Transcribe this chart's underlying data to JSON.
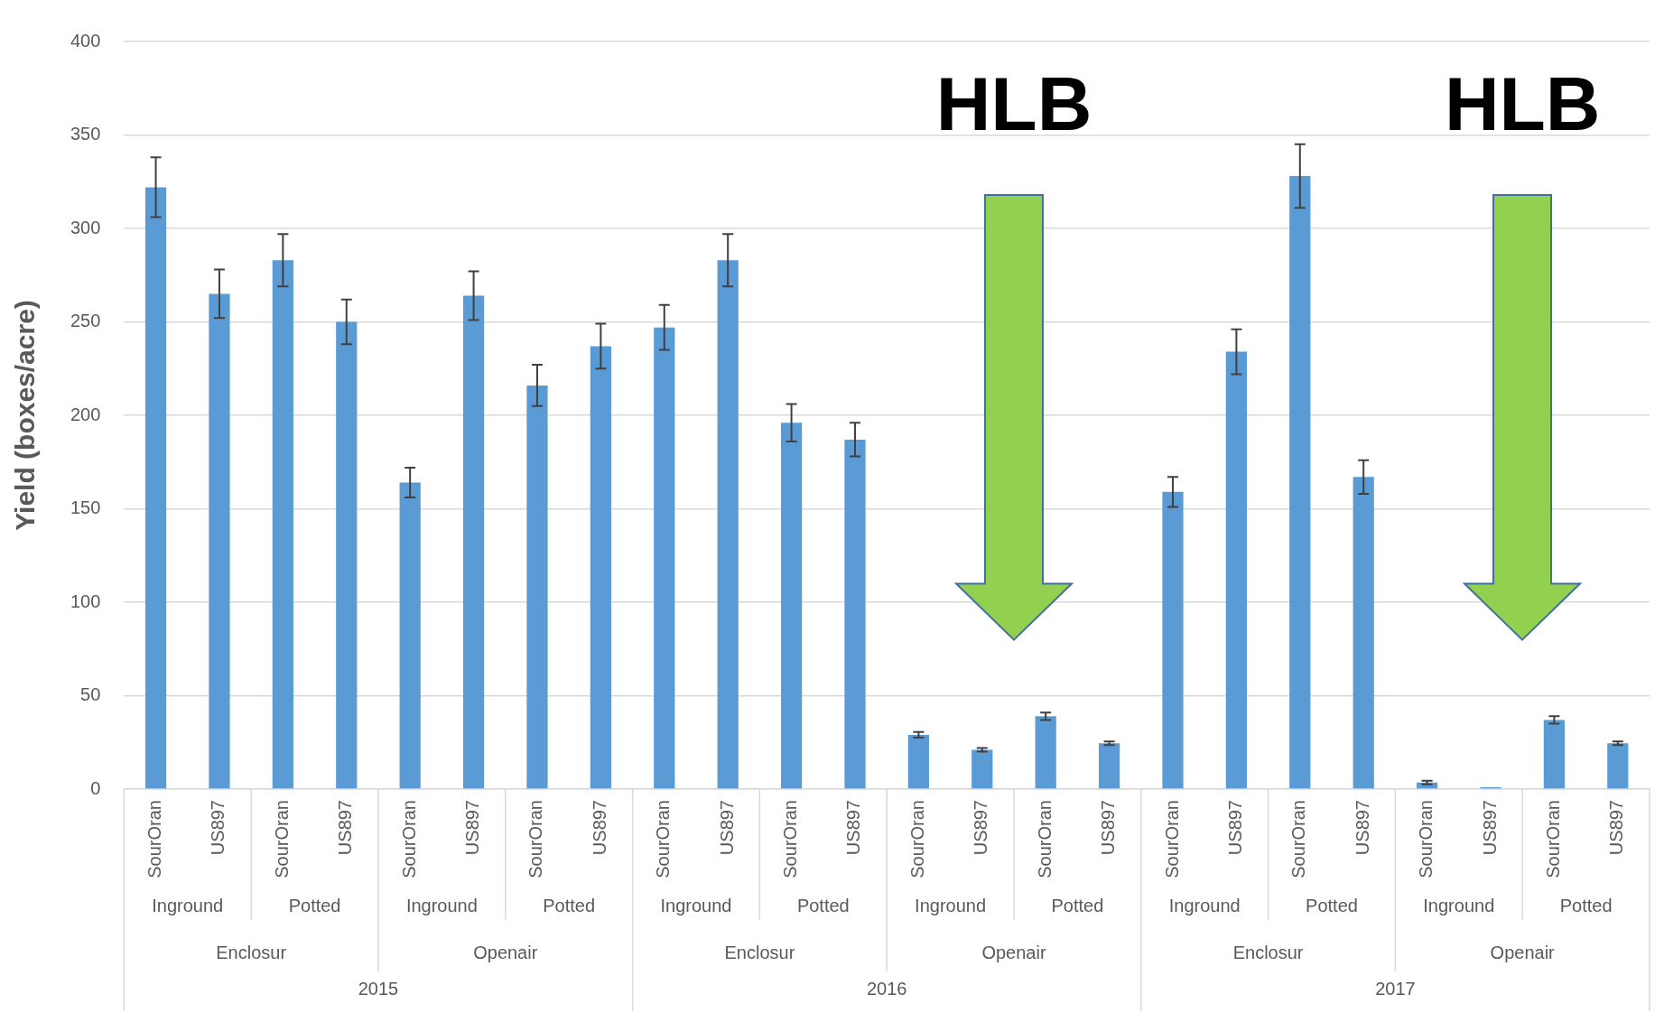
{
  "chart_data": {
    "type": "bar",
    "ylabel": "Yield (boxes/acre)",
    "categories": [
      "SourOran",
      "US897",
      "SourOran",
      "US897",
      "SourOran",
      "US897",
      "SourOran",
      "US897",
      "SourOran",
      "US897",
      "SourOran",
      "US897",
      "SourOran",
      "US897",
      "SourOran",
      "US897",
      "SourOran",
      "US897",
      "SourOran",
      "US897",
      "SourOran",
      "US897",
      "SourOran",
      "US897"
    ],
    "values": [
      322,
      265,
      283,
      250,
      164,
      264,
      216,
      237,
      247,
      283,
      196,
      187,
      29,
      21,
      39,
      24.5,
      159,
      234,
      328,
      167,
      3.5,
      1,
      37,
      24.5
    ],
    "errors": [
      16,
      13,
      14,
      12,
      8,
      13,
      11,
      12,
      12,
      14,
      10,
      9,
      1.5,
      1,
      2,
      1,
      8,
      12,
      17,
      9,
      1,
      null,
      2,
      1
    ],
    "color": "#5b9bd5",
    "ylim": [
      0,
      400
    ],
    "yticks": [
      0,
      50,
      100,
      150,
      200,
      250,
      300,
      350,
      400
    ],
    "grid": "y",
    "annotations": [
      "Inground",
      "Potted",
      "Inground",
      "Potted",
      "Inground",
      "Potted",
      "Inground",
      "Potted",
      "Inground",
      "Potted",
      "Inground",
      "Potted",
      "Enclosur",
      "Openair",
      "Enclosur",
      "Openair",
      "Enclosur",
      "Openair",
      "2015",
      "2016",
      "2017",
      "HLB",
      "HLB"
    ]
  }
}
